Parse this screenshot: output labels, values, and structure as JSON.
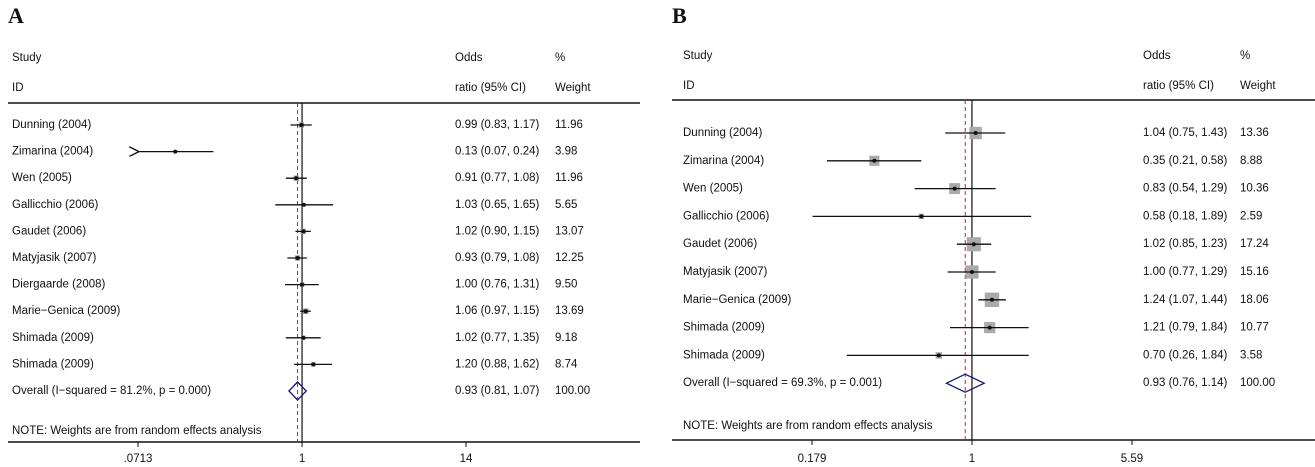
{
  "chart_data": [
    {
      "type": "forest",
      "panel": "A",
      "headers": {
        "study": "Study",
        "id": "ID",
        "odds": "Odds",
        "ratio": "ratio (95% CI)",
        "pct": "%",
        "weight": "Weight"
      },
      "studies": [
        "Dunning (2004)",
        "Zimarina (2004)",
        "Wen (2005)",
        "Gallicchio (2006)",
        "Gaudet (2006)",
        "Matyjasik (2007)",
        "Diergaarde (2008)",
        "Marie−Genica (2009)",
        "Shimada (2009)",
        "Shimada (2009)"
      ],
      "values": [
        0.99,
        0.13,
        0.91,
        1.03,
        1.02,
        0.93,
        1.0,
        1.06,
        1.02,
        1.2
      ],
      "lower": [
        0.83,
        0.07,
        0.77,
        0.65,
        0.9,
        0.79,
        0.76,
        0.97,
        0.77,
        0.88
      ],
      "upper": [
        1.17,
        0.24,
        1.08,
        1.65,
        1.15,
        1.08,
        1.31,
        1.15,
        1.35,
        1.62
      ],
      "value_labels": [
        "0.99 (0.83, 1.17)",
        "0.13 (0.07, 0.24)",
        "0.91 (0.77, 1.08)",
        "1.03 (0.65, 1.65)",
        "1.02 (0.90, 1.15)",
        "0.93 (0.79, 1.08)",
        "1.00 (0.76, 1.31)",
        "1.06 (0.97, 1.15)",
        "1.02 (0.77, 1.35)",
        "1.20 (0.88, 1.62)"
      ],
      "weights": [
        11.96,
        3.98,
        11.96,
        5.65,
        13.07,
        12.25,
        9.5,
        13.69,
        9.18,
        8.74
      ],
      "weight_labels": [
        "11.96",
        "3.98",
        "11.96",
        "5.65",
        "13.07",
        "12.25",
        "9.50",
        "13.69",
        "9.18",
        "8.74"
      ],
      "overall": {
        "label": "Overall  (I−squared = 81.2%, p = 0.000)",
        "value": 0.93,
        "lower": 0.81,
        "upper": 1.07,
        "value_label": "0.93 (0.81, 1.07)",
        "weight_label": "100.00"
      },
      "note": "NOTE: Weights are from random effects analysis",
      "log_x": true,
      "xlim": [
        0.0713,
        14
      ],
      "xticks": [
        {
          "value": 0.0713,
          "label": ".0713"
        },
        1,
        14
      ],
      "marker_color": "#999999",
      "overall_color": "#1a1a7a",
      "reference_color": "#cc2222"
    },
    {
      "type": "forest",
      "panel": "B",
      "headers": {
        "study": "Study",
        "id": "ID",
        "odds": "Odds",
        "ratio": "ratio (95% CI)",
        "pct": "%",
        "weight": "Weight"
      },
      "studies": [
        "Dunning (2004)",
        "Zimarina (2004)",
        "Wen (2005)",
        "Gallicchio (2006)",
        "Gaudet (2006)",
        "Matyjasik (2007)",
        "Marie−Genica (2009)",
        "Shimada (2009)",
        "Shimada (2009)"
      ],
      "values": [
        1.04,
        0.35,
        0.83,
        0.58,
        1.02,
        1.0,
        1.24,
        1.21,
        0.7
      ],
      "lower": [
        0.75,
        0.21,
        0.54,
        0.18,
        0.85,
        0.77,
        1.07,
        0.79,
        0.26
      ],
      "upper": [
        1.43,
        0.58,
        1.29,
        1.89,
        1.23,
        1.29,
        1.44,
        1.84,
        1.84
      ],
      "value_labels": [
        "1.04 (0.75, 1.43)",
        "0.35 (0.21, 0.58)",
        "0.83 (0.54, 1.29)",
        "0.58 (0.18, 1.89)",
        "1.02 (0.85, 1.23)",
        "1.00 (0.77, 1.29)",
        "1.24 (1.07, 1.44)",
        "1.21 (0.79, 1.84)",
        "0.70 (0.26, 1.84)"
      ],
      "weights": [
        13.36,
        8.88,
        10.36,
        2.59,
        17.24,
        15.16,
        18.06,
        10.77,
        3.58
      ],
      "weight_labels": [
        "13.36",
        "8.88",
        "10.36",
        "2.59",
        "17.24",
        "15.16",
        "18.06",
        "10.77",
        "3.58"
      ],
      "overall": {
        "label": "Overall  (I−squared = 69.3%, p = 0.001)",
        "value": 0.93,
        "lower": 0.76,
        "upper": 1.14,
        "value_label": "0.93 (0.76, 1.14)",
        "weight_label": "100.00"
      },
      "note": "NOTE: Weights are from random effects analysis",
      "log_x": true,
      "xlim": [
        0.179,
        5.59
      ],
      "xticks": [
        0.179,
        1,
        5.59
      ],
      "marker_color": "#aaaaaa",
      "overall_color": "#1a1a7a",
      "reference_color": "#cc2222"
    }
  ]
}
